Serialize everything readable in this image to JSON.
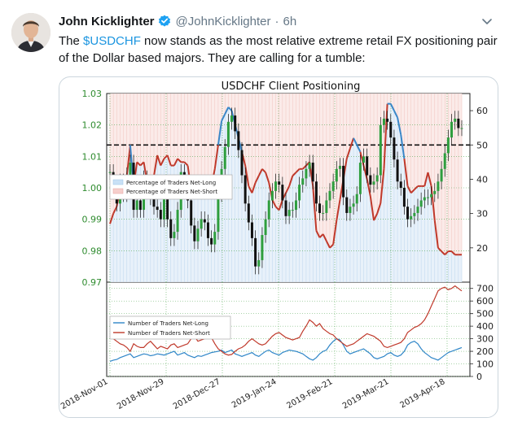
{
  "tweet": {
    "author_name": "John Kicklighter",
    "handle": "@JohnKicklighter",
    "separator": "·",
    "time": "6h",
    "text_part1": "The ",
    "cashtag": "$USDCHF",
    "text_part2": " now stands as the most relative extreme retail FX positioning pair of the Dollar based majors. They are calling for a tumble:",
    "icons": {
      "verified": "verified-badge-icon",
      "more": "chevron-down-icon",
      "avatar": "avatar"
    },
    "colors": {
      "link": "#1b95e0",
      "verified": "#1da1f2",
      "muted": "#657786"
    }
  },
  "chart_data": [
    {
      "type": "line",
      "title": "USDCHF Client Positioning",
      "y_left_ticks": [
        "1.03",
        "1.02",
        "1.01",
        "1.00",
        "0.99",
        "0.98",
        "0.97"
      ],
      "y_right_ticks": [
        "60",
        "50",
        "40",
        "30",
        "20"
      ],
      "ylim_left": [
        0.97,
        1.03
      ],
      "ylim_right": [
        10,
        65
      ],
      "reference_line": 50,
      "legend": [
        "Percentage of Traders Net-Long",
        "Percentage of Traders Net-Short"
      ],
      "price": [
        1.005,
        1.0,
        0.995,
        1.002,
        0.998,
        1.004,
        1.008,
        0.993,
        0.996,
        0.993,
        1.003,
        1.0,
        0.997,
        0.994,
        0.993,
        0.99,
        0.997,
        0.99,
        0.984,
        0.986,
        0.993,
        1.005,
        1.0,
        0.996,
        0.988,
        0.983,
        0.987,
        0.99,
        0.989,
        0.984,
        0.982,
        0.986,
        0.998,
        1.006,
        1.013,
        1.021,
        1.023,
        1.018,
        1.012,
        1.004,
        0.995,
        0.989,
        0.984,
        0.975,
        0.977,
        0.985,
        0.99,
        0.996,
        0.999,
        1.002,
        1.001,
        0.996,
        0.991,
        0.993,
        0.993,
        0.996,
        1.001,
        1.003,
        1.006,
        1.008,
        1.002,
        0.995,
        0.992,
        0.992,
        0.996,
        0.999,
        1.002,
        1.006,
        1.007,
        0.997,
        0.992,
        0.994,
        0.995,
        0.998,
        1.008,
        1.01,
        1.004,
        1.001,
        1.002,
        1.004,
        1.02,
        1.022,
        1.021,
        1.016,
        1.009,
        1.002,
        1.0,
        0.994,
        0.99,
        0.991,
        0.992,
        0.994,
        0.996,
        0.997,
        0.997,
        0.998,
        0.999,
        1.002,
        1.006,
        1.011,
        1.016,
        1.021,
        1.022,
        1.019,
        1.019
      ],
      "net_long_pct": [
        27,
        30,
        32,
        37,
        39,
        41,
        50,
        38,
        45,
        44,
        45,
        39,
        35,
        41,
        47,
        44,
        46,
        47,
        44,
        44,
        46,
        45,
        45,
        44,
        37,
        35,
        39,
        38,
        37,
        36,
        38,
        43,
        50,
        57,
        59,
        61,
        60,
        56,
        52,
        48,
        44,
        38,
        36,
        39,
        41,
        43,
        42,
        39,
        34,
        32,
        31,
        34,
        36,
        38,
        41,
        42,
        43,
        43,
        44,
        45,
        38,
        25,
        23,
        24,
        22,
        20,
        21,
        28,
        34,
        40,
        46,
        49,
        52,
        50,
        48,
        44,
        40,
        35,
        28,
        30,
        33,
        43,
        62,
        62,
        60,
        58,
        53,
        46,
        38,
        36,
        37,
        38,
        38,
        38,
        42,
        38,
        28,
        20,
        19,
        18,
        19,
        19,
        18,
        18,
        18
      ]
    },
    {
      "type": "line",
      "y_right_ticks": [
        "700",
        "600",
        "500",
        "400",
        "300",
        "200",
        "100",
        "0"
      ],
      "ylim": [
        0,
        750
      ],
      "x_tick_labels": [
        "2018-Nov-01",
        "2018-Nov-29",
        "2018-Dec-27",
        "2019-Jan-24",
        "2019-Feb-21",
        "2019-Mar-21",
        "2019-Apr-18"
      ],
      "legend": [
        "Number of Traders Net-Long",
        "Number of Traders Net-Short"
      ],
      "series": [
        {
          "name": "Number of Traders Net-Long",
          "values": [
            120,
            130,
            135,
            150,
            160,
            170,
            180,
            150,
            160,
            170,
            180,
            175,
            165,
            170,
            180,
            175,
            170,
            180,
            190,
            200,
            170,
            180,
            190,
            170,
            160,
            150,
            165,
            160,
            170,
            180,
            190,
            195,
            200,
            210,
            190,
            200,
            210,
            180,
            170,
            160,
            170,
            180,
            190,
            170,
            160,
            180,
            200,
            210,
            190,
            180,
            170,
            190,
            200,
            210,
            205,
            200,
            190,
            180,
            160,
            140,
            130,
            150,
            180,
            200,
            210,
            250,
            280,
            300,
            290,
            250,
            200,
            180,
            190,
            200,
            210,
            220,
            200,
            180,
            150,
            140,
            150,
            160,
            180,
            190,
            170,
            160,
            170,
            200,
            250,
            270,
            280,
            260,
            220,
            190,
            170,
            150,
            140,
            130,
            150,
            170,
            190,
            200,
            210,
            220,
            230
          ]
        },
        {
          "name": "Number of Traders Net-Short",
          "values": [
            320,
            300,
            280,
            260,
            250,
            230,
            200,
            260,
            240,
            230,
            230,
            260,
            280,
            250,
            220,
            240,
            230,
            220,
            250,
            260,
            230,
            240,
            250,
            260,
            300,
            320,
            280,
            290,
            300,
            320,
            310,
            260,
            220,
            200,
            180,
            170,
            175,
            200,
            220,
            230,
            250,
            280,
            300,
            280,
            260,
            250,
            260,
            290,
            320,
            340,
            350,
            330,
            310,
            300,
            290,
            300,
            310,
            360,
            400,
            450,
            430,
            400,
            420,
            380,
            360,
            340,
            330,
            300,
            280,
            260,
            240,
            250,
            260,
            280,
            300,
            320,
            340,
            330,
            320,
            300,
            280,
            240,
            230,
            240,
            250,
            260,
            270,
            300,
            350,
            370,
            390,
            400,
            420,
            450,
            500,
            560,
            620,
            680,
            700,
            710,
            690,
            700,
            720,
            700,
            680
          ]
        }
      ]
    }
  ]
}
